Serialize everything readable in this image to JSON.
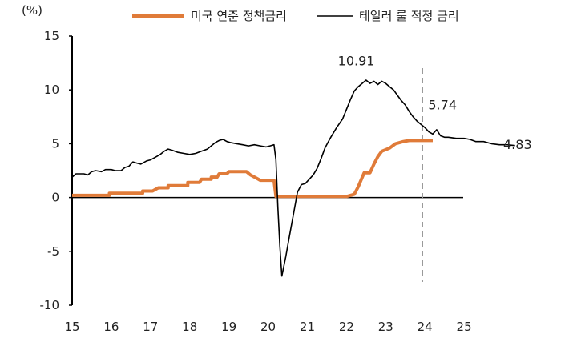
{
  "chart_data": {
    "type": "line",
    "unit_label": "(%)",
    "xlabel": "",
    "ylabel": "(%)",
    "xlim": [
      15,
      26
    ],
    "ylim": [
      -10,
      15
    ],
    "y_ticks": [
      15,
      10,
      5,
      0,
      -5,
      -10
    ],
    "x_ticks": [
      15,
      16,
      17,
      18,
      19,
      20,
      21,
      22,
      23,
      24,
      25
    ],
    "reference_line_x": 24,
    "legend": [
      {
        "name": "미국 연준 정책금리",
        "color": "#E07B39"
      },
      {
        "name": "테일러 룰 적정 금리",
        "color": "#000000"
      }
    ],
    "annotations": [
      {
        "text": "10.91",
        "x": 22.25,
        "y": 12.3
      },
      {
        "text": "5.74",
        "x": 24.45,
        "y": 8.2
      },
      {
        "text": "4.83",
        "x": 26.0,
        "y": 4.5
      }
    ],
    "series": [
      {
        "name": "미국 연준 정책금리",
        "color": "#E07B39",
        "points": [
          [
            15.0,
            0.2
          ],
          [
            15.95,
            0.2
          ],
          [
            15.95,
            0.4
          ],
          [
            16.8,
            0.4
          ],
          [
            16.8,
            0.6
          ],
          [
            17.05,
            0.6
          ],
          [
            17.2,
            0.9
          ],
          [
            17.45,
            0.9
          ],
          [
            17.45,
            1.1
          ],
          [
            17.95,
            1.1
          ],
          [
            17.95,
            1.4
          ],
          [
            18.25,
            1.4
          ],
          [
            18.3,
            1.7
          ],
          [
            18.55,
            1.7
          ],
          [
            18.55,
            1.9
          ],
          [
            18.7,
            1.9
          ],
          [
            18.75,
            2.2
          ],
          [
            18.95,
            2.2
          ],
          [
            19.0,
            2.4
          ],
          [
            19.45,
            2.4
          ],
          [
            19.55,
            2.1
          ],
          [
            19.7,
            1.8
          ],
          [
            19.8,
            1.6
          ],
          [
            20.15,
            1.6
          ],
          [
            20.2,
            0.1
          ],
          [
            22.0,
            0.1
          ],
          [
            22.2,
            0.3
          ],
          [
            22.3,
            1.0
          ],
          [
            22.45,
            2.3
          ],
          [
            22.6,
            2.3
          ],
          [
            22.7,
            3.1
          ],
          [
            22.8,
            3.8
          ],
          [
            22.9,
            4.3
          ],
          [
            23.1,
            4.6
          ],
          [
            23.25,
            5.0
          ],
          [
            23.45,
            5.2
          ],
          [
            23.6,
            5.3
          ],
          [
            24.2,
            5.3
          ]
        ]
      },
      {
        "name": "테일러 룰 적정 금리",
        "color": "#000000",
        "points": [
          [
            15.0,
            1.9
          ],
          [
            15.1,
            2.2
          ],
          [
            15.3,
            2.2
          ],
          [
            15.4,
            2.1
          ],
          [
            15.5,
            2.4
          ],
          [
            15.6,
            2.5
          ],
          [
            15.75,
            2.4
          ],
          [
            15.85,
            2.6
          ],
          [
            16.0,
            2.6
          ],
          [
            16.1,
            2.5
          ],
          [
            16.25,
            2.5
          ],
          [
            16.35,
            2.8
          ],
          [
            16.45,
            2.9
          ],
          [
            16.55,
            3.3
          ],
          [
            16.65,
            3.2
          ],
          [
            16.75,
            3.1
          ],
          [
            16.9,
            3.4
          ],
          [
            17.0,
            3.5
          ],
          [
            17.1,
            3.7
          ],
          [
            17.25,
            4.0
          ],
          [
            17.35,
            4.3
          ],
          [
            17.45,
            4.5
          ],
          [
            17.55,
            4.4
          ],
          [
            17.7,
            4.2
          ],
          [
            17.85,
            4.1
          ],
          [
            18.0,
            4.0
          ],
          [
            18.15,
            4.1
          ],
          [
            18.3,
            4.3
          ],
          [
            18.45,
            4.5
          ],
          [
            18.55,
            4.8
          ],
          [
            18.65,
            5.1
          ],
          [
            18.75,
            5.3
          ],
          [
            18.85,
            5.4
          ],
          [
            18.95,
            5.2
          ],
          [
            19.05,
            5.1
          ],
          [
            19.2,
            5.0
          ],
          [
            19.35,
            4.9
          ],
          [
            19.5,
            4.8
          ],
          [
            19.65,
            4.9
          ],
          [
            19.8,
            4.8
          ],
          [
            19.95,
            4.7
          ],
          [
            20.05,
            4.8
          ],
          [
            20.15,
            4.9
          ],
          [
            20.2,
            3.5
          ],
          [
            20.25,
            -1.0
          ],
          [
            20.3,
            -4.5
          ],
          [
            20.35,
            -7.3
          ],
          [
            20.45,
            -5.5
          ],
          [
            20.55,
            -3.5
          ],
          [
            20.65,
            -1.5
          ],
          [
            20.75,
            0.5
          ],
          [
            20.85,
            1.2
          ],
          [
            20.95,
            1.3
          ],
          [
            21.05,
            1.7
          ],
          [
            21.15,
            2.1
          ],
          [
            21.25,
            2.7
          ],
          [
            21.35,
            3.6
          ],
          [
            21.45,
            4.6
          ],
          [
            21.6,
            5.6
          ],
          [
            21.75,
            6.5
          ],
          [
            21.9,
            7.3
          ],
          [
            22.0,
            8.2
          ],
          [
            22.1,
            9.1
          ],
          [
            22.2,
            9.9
          ],
          [
            22.3,
            10.3
          ],
          [
            22.4,
            10.6
          ],
          [
            22.5,
            10.91
          ],
          [
            22.6,
            10.6
          ],
          [
            22.7,
            10.8
          ],
          [
            22.8,
            10.5
          ],
          [
            22.9,
            10.8
          ],
          [
            23.0,
            10.6
          ],
          [
            23.1,
            10.3
          ],
          [
            23.2,
            10.0
          ],
          [
            23.3,
            9.5
          ],
          [
            23.4,
            9.0
          ],
          [
            23.5,
            8.6
          ],
          [
            23.6,
            8.0
          ],
          [
            23.7,
            7.5
          ],
          [
            23.8,
            7.1
          ],
          [
            23.9,
            6.8
          ],
          [
            24.0,
            6.5
          ],
          [
            24.1,
            6.1
          ],
          [
            24.2,
            5.9
          ],
          [
            24.3,
            6.3
          ],
          [
            24.4,
            5.74
          ],
          [
            24.5,
            5.6
          ],
          [
            24.6,
            5.6
          ],
          [
            24.8,
            5.5
          ],
          [
            25.0,
            5.5
          ],
          [
            25.15,
            5.4
          ],
          [
            25.3,
            5.2
          ],
          [
            25.5,
            5.2
          ],
          [
            25.7,
            5.0
          ],
          [
            25.9,
            4.9
          ],
          [
            26.1,
            4.9
          ],
          [
            26.3,
            4.83
          ]
        ]
      }
    ]
  }
}
